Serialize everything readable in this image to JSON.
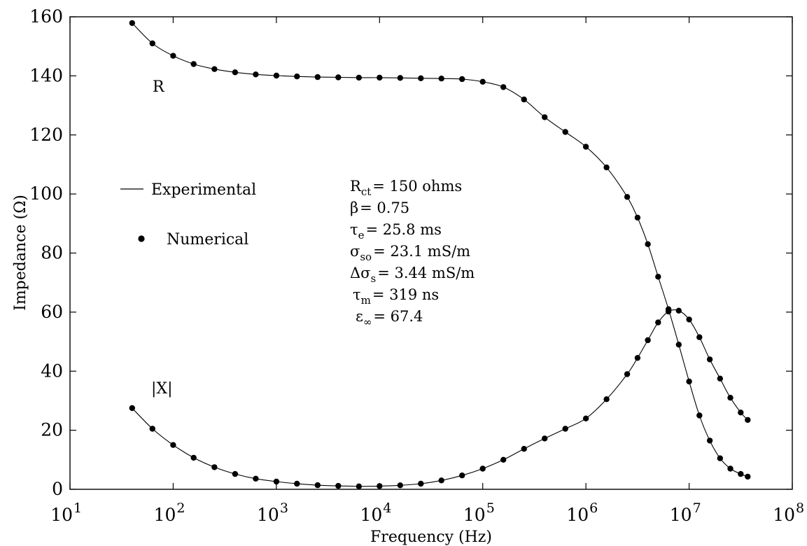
{
  "chart_data": {
    "type": "line",
    "xlabel": "Frequency (Hz)",
    "ylabel": "Impedance (Ω)",
    "xscale": "log",
    "xlim": [
      10,
      100000000
    ],
    "ylim": [
      0,
      160
    ],
    "grid": false,
    "legend_placement": "center-left",
    "x_ticks": [
      {
        "value": 10,
        "base": "10",
        "exp": "1"
      },
      {
        "value": 100,
        "base": "10",
        "exp": "2"
      },
      {
        "value": 1000,
        "base": "10",
        "exp": "3"
      },
      {
        "value": 10000,
        "base": "10",
        "exp": "4"
      },
      {
        "value": 100000,
        "base": "10",
        "exp": "5"
      },
      {
        "value": 1000000,
        "base": "10",
        "exp": "6"
      },
      {
        "value": 10000000,
        "base": "10",
        "exp": "7"
      },
      {
        "value": 100000000,
        "base": "10",
        "exp": "8"
      }
    ],
    "y_ticks": [
      "0",
      "20",
      "40",
      "60",
      "80",
      "100",
      "120",
      "140",
      "160"
    ],
    "legend": [
      {
        "label": "Experimental",
        "style": "line"
      },
      {
        "label": "Numerical",
        "style": "marker"
      }
    ],
    "curve_labels": {
      "R": "R",
      "X": "|X|"
    },
    "parameters": [
      {
        "sym": "R",
        "sub": "ct",
        "rest": "= 150 ohms"
      },
      {
        "sym": "β",
        "sub": "",
        "rest": "= 0.75"
      },
      {
        "sym": "τ",
        "sub": "e",
        "rest": "= 25.8 ms"
      },
      {
        "sym": "σ",
        "sub": "so",
        "rest": "= 23.1 mS/m"
      },
      {
        "sym": "Δσ",
        "sub": "s",
        "rest": "= 3.44 mS/m"
      },
      {
        "sym": "τ",
        "sub": "m",
        "rest": "= 319 ns"
      },
      {
        "sym": "ε",
        "sub": "∞",
        "rest": "= 67.4"
      }
    ],
    "series": [
      {
        "name": "R",
        "x": [
          40,
          63,
          100,
          158,
          251,
          398,
          631,
          1000,
          1585,
          2512,
          3981,
          6310,
          10000,
          15850,
          25120,
          39810,
          63100,
          100000,
          158500,
          251200,
          398100,
          631000,
          1000000,
          1585000,
          2512000,
          3162000,
          3981000,
          5012000,
          6310000,
          7943000,
          10000000,
          12590000,
          15850000,
          19950000,
          25120000,
          31620000,
          37000000
        ],
        "values": [
          157.9,
          151.0,
          146.8,
          144.0,
          142.3,
          141.2,
          140.5,
          140.1,
          139.8,
          139.6,
          139.5,
          139.4,
          139.4,
          139.3,
          139.2,
          139.1,
          138.9,
          138.0,
          136.2,
          132.0,
          126.0,
          121.0,
          116.0,
          109.0,
          99.0,
          92.0,
          83.0,
          72.0,
          61.0,
          49.0,
          36.5,
          25.0,
          16.5,
          10.5,
          7.0,
          5.2,
          4.3
        ]
      },
      {
        "name": "|X|",
        "x": [
          40,
          63,
          100,
          158,
          251,
          398,
          631,
          1000,
          1585,
          2512,
          3981,
          6310,
          10000,
          15850,
          25120,
          39810,
          63100,
          100000,
          158500,
          251200,
          398100,
          631000,
          1000000,
          1585000,
          2512000,
          3162000,
          3981000,
          5012000,
          6310000,
          7943000,
          10000000,
          12590000,
          15850000,
          19950000,
          25120000,
          31620000,
          37000000
        ],
        "values": [
          27.5,
          20.5,
          15.0,
          10.7,
          7.5,
          5.2,
          3.6,
          2.6,
          1.9,
          1.4,
          1.15,
          1.0,
          1.1,
          1.35,
          1.9,
          3.0,
          4.7,
          7.0,
          10.0,
          13.7,
          17.2,
          20.5,
          24.0,
          30.5,
          39.0,
          44.5,
          50.5,
          56.5,
          60.2,
          60.5,
          57.5,
          51.5,
          44.0,
          37.5,
          31.0,
          26.0,
          23.5
        ]
      }
    ]
  }
}
